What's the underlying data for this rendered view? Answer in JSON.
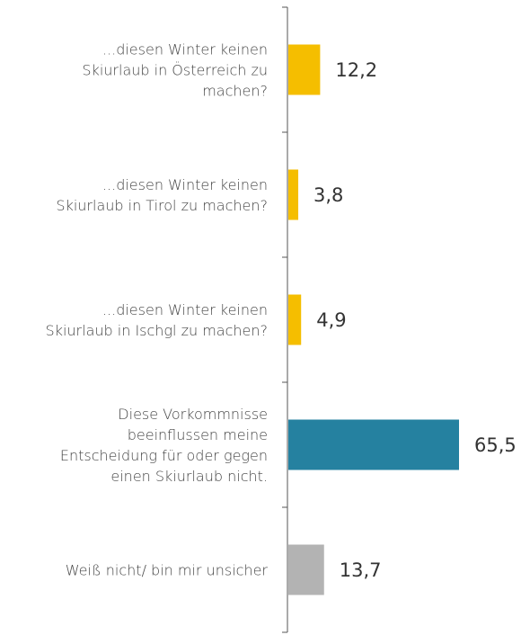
{
  "chart_data": {
    "type": "bar",
    "orientation": "horizontal",
    "categories": [
      "...diesen Winter keinen\nSkiurlaub in Österreich zu\nmachen?",
      "...diesen Winter keinen\nSkiurlaub in Tirol zu machen?",
      "...diesen Winter keinen\nSkiurlaub in Ischgl zu machen?",
      "Diese Vorkommnisse\nbeeinflussen meine\nEntscheidung für oder gegen\neinen Skiurlaub nicht.",
      "Weiß nicht/ bin mir unsicher"
    ],
    "values": [
      12.2,
      3.8,
      4.9,
      65.5,
      13.7
    ],
    "value_labels": [
      "12,2",
      "3,8",
      "4,9",
      "65,5",
      "13,7"
    ],
    "colors": [
      "#f5be00",
      "#f5be00",
      "#f5be00",
      "#2581a0",
      "#b3b3b3"
    ]
  }
}
